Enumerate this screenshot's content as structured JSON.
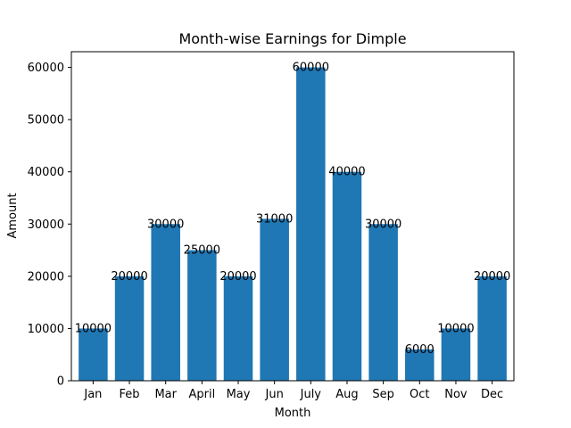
{
  "chart_data": {
    "type": "bar",
    "title": "Month-wise Earnings for Dimple",
    "xlabel": "Month",
    "ylabel": "Amount",
    "categories": [
      "Jan",
      "Feb",
      "Mar",
      "April",
      "May",
      "Jun",
      "July",
      "Aug",
      "Sep",
      "Oct",
      "Nov",
      "Dec"
    ],
    "values": [
      10000,
      20000,
      30000,
      25000,
      20000,
      31000,
      60000,
      40000,
      30000,
      6000,
      10000,
      20000
    ],
    "data_labels": [
      "10000",
      "20000",
      "30000",
      "25000",
      "20000",
      "31000",
      "60000",
      "40000",
      "30000",
      "6000",
      "10000",
      "20000"
    ],
    "ylim": [
      0,
      63000
    ],
    "yticks": [
      0,
      10000,
      20000,
      30000,
      40000,
      50000,
      60000
    ],
    "grid": false,
    "legend": "none",
    "bar_color": "#1f77b4"
  }
}
